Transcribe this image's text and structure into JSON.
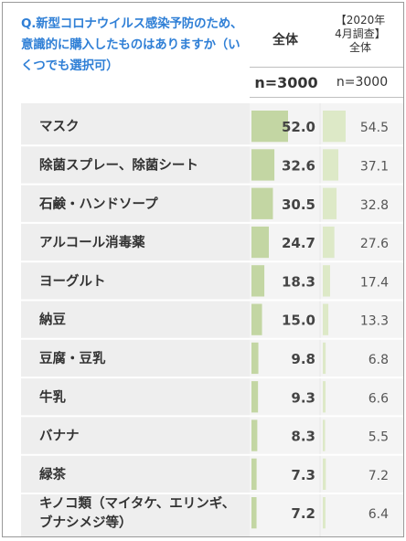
{
  "header": {
    "question": "Q.新型コロナウイルス感染予防のため、意識的に購入したものはありますか（いくつでも選択可）",
    "col_all": "全体",
    "col_2020_line1": "【2020年",
    "col_2020_line2": "4月調查】",
    "col_2020_line3": "全体",
    "n_all": "n=3000",
    "n_2020": "n=3000"
  },
  "chart_data": {
    "type": "bar",
    "categories": [
      "マスク",
      "除菌スプレー、除菌シート",
      "石鹸・ハンドソープ",
      "アルコール消毒薬",
      "ヨーグルト",
      "納豆",
      "豆腐・豆乳",
      "牛乳",
      "バナナ",
      "緑茶",
      "キノコ類（マイタケ、エリンギ、ブナシメジ等）"
    ],
    "category_lines": [
      [
        "マスク"
      ],
      [
        "除菌スプレー、除菌シート"
      ],
      [
        "石鹸・ハンドソープ"
      ],
      [
        "アルコール消毒薬"
      ],
      [
        "ヨーグルト"
      ],
      [
        "納豆"
      ],
      [
        "豆腐・豆乳"
      ],
      [
        "牛乳"
      ],
      [
        "バナナ"
      ],
      [
        "緑茶"
      ],
      [
        "キノコ類（マイタケ、エリンギ、",
        "ブナシメジ等）"
      ]
    ],
    "series": [
      {
        "name": "全体",
        "values": [
          52.0,
          32.6,
          30.5,
          24.7,
          18.3,
          15.0,
          9.8,
          9.3,
          8.3,
          7.3,
          7.2
        ]
      },
      {
        "name": "【2020年4月調查】全体",
        "values": [
          54.5,
          37.1,
          32.8,
          27.6,
          17.4,
          13.3,
          6.8,
          6.6,
          5.5,
          7.2,
          6.4
        ]
      }
    ],
    "ylim": [
      0,
      100
    ],
    "colors": {
      "all": "#c3d6a3",
      "prev": "#dde9c7",
      "band": "#eeeeee"
    }
  }
}
